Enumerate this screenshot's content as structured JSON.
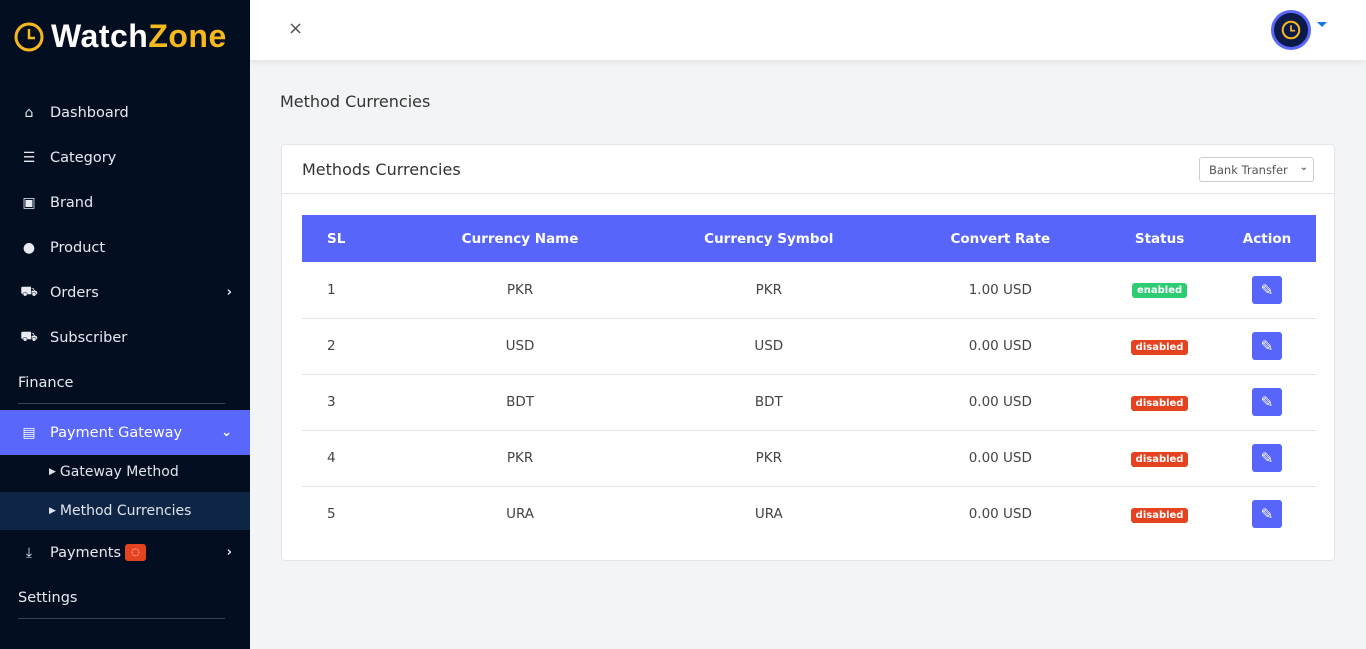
{
  "brand": {
    "name_part1": "Watch",
    "name_part2": "Zone",
    "accent": "#f5b91e"
  },
  "sidebar": {
    "items": [
      {
        "label": "Dashboard",
        "icon": "home-icon"
      },
      {
        "label": "Category",
        "icon": "list-icon"
      },
      {
        "label": "Brand",
        "icon": "money-icon"
      },
      {
        "label": "Product",
        "icon": "product-icon"
      },
      {
        "label": "Orders",
        "icon": "cart-icon"
      },
      {
        "label": "Subscriber",
        "icon": "truck-icon"
      }
    ],
    "finance_label": "Finance",
    "payment_gateway": {
      "label": "Payment Gateway",
      "icon": "card-icon",
      "children": [
        {
          "label": "Gateway Method"
        },
        {
          "label": "Method Currencies"
        }
      ]
    },
    "payments": {
      "label": "Payments",
      "icon": "download-icon"
    },
    "settings_label": "Settings"
  },
  "topbar": {
    "close": "×"
  },
  "page": {
    "title": "Method Currencies"
  },
  "card": {
    "title": "Methods Currencies",
    "select_value": "Bank Transfer"
  },
  "table": {
    "headers": [
      "SL",
      "Currency Name",
      "Currency Symbol",
      "Convert Rate",
      "Status",
      "Action"
    ],
    "rows": [
      {
        "sl": "1",
        "name": "PKR",
        "symbol": "PKR",
        "rate": "1.00 USD",
        "status": "enabled"
      },
      {
        "sl": "2",
        "name": "USD",
        "symbol": "USD",
        "rate": "0.00 USD",
        "status": "disabled"
      },
      {
        "sl": "3",
        "name": "BDT",
        "symbol": "BDT",
        "rate": "0.00 USD",
        "status": "disabled"
      },
      {
        "sl": "4",
        "name": "PKR",
        "symbol": "PKR",
        "rate": "0.00 USD",
        "status": "disabled"
      },
      {
        "sl": "5",
        "name": "URA",
        "symbol": "URA",
        "rate": "0.00 USD",
        "status": "disabled"
      }
    ]
  },
  "colors": {
    "primary": "#5865fb",
    "enabled": "#2ecc71",
    "disabled": "#e5421f",
    "sidebar": "#030f21"
  }
}
